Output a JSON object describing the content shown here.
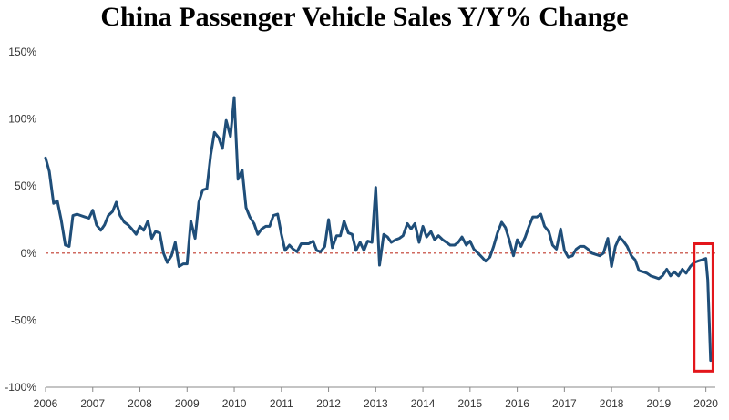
{
  "chart_data": {
    "type": "line",
    "title": "China Passenger Vehicle Sales Y/Y% Change",
    "xlabel": "",
    "ylabel": "",
    "xlim": [
      2006,
      2020.2
    ],
    "ylim": [
      -100,
      150
    ],
    "x_ticks": [
      2006,
      2007,
      2008,
      2009,
      2010,
      2011,
      2012,
      2013,
      2014,
      2015,
      2016,
      2017,
      2018,
      2019,
      2020
    ],
    "x_tick_labels": [
      "2006",
      "2007",
      "2008",
      "2009",
      "2010",
      "2011",
      "2012",
      "2013",
      "2014",
      "2015",
      "2016",
      "2017",
      "2018",
      "2019",
      "2020"
    ],
    "y_ticks": [
      -100,
      -50,
      0,
      50,
      100,
      150
    ],
    "y_tick_labels": [
      "-100%",
      "-50%",
      "0%",
      "50%",
      "100%",
      "150%"
    ],
    "grid": false,
    "reference_line": {
      "y": 0,
      "style": "dashed",
      "color": "#c0392b"
    },
    "highlight_box": {
      "x": [
        2019.75,
        2020.15
      ],
      "y": [
        -88,
        7
      ],
      "color": "#e3161b"
    },
    "line_color": "#1f4e79",
    "series": [
      {
        "values": [
          [
            2006.0,
            71
          ],
          [
            2006.08,
            61
          ],
          [
            2006.17,
            37
          ],
          [
            2006.25,
            39
          ],
          [
            2006.33,
            25
          ],
          [
            2006.42,
            6
          ],
          [
            2006.5,
            5
          ],
          [
            2006.58,
            28
          ],
          [
            2006.67,
            29
          ],
          [
            2006.75,
            28
          ],
          [
            2006.83,
            27
          ],
          [
            2006.92,
            26
          ],
          [
            2007.0,
            32
          ],
          [
            2007.08,
            21
          ],
          [
            2007.17,
            17
          ],
          [
            2007.25,
            21
          ],
          [
            2007.33,
            28
          ],
          [
            2007.42,
            31
          ],
          [
            2007.5,
            38
          ],
          [
            2007.58,
            28
          ],
          [
            2007.67,
            23
          ],
          [
            2007.75,
            21
          ],
          [
            2007.83,
            18
          ],
          [
            2007.92,
            14
          ],
          [
            2008.0,
            20
          ],
          [
            2008.08,
            17
          ],
          [
            2008.17,
            24
          ],
          [
            2008.25,
            11
          ],
          [
            2008.33,
            16
          ],
          [
            2008.42,
            15
          ],
          [
            2008.5,
            0
          ],
          [
            2008.58,
            -7
          ],
          [
            2008.67,
            -2
          ],
          [
            2008.75,
            8
          ],
          [
            2008.83,
            -10
          ],
          [
            2008.92,
            -8
          ],
          [
            2009.0,
            -8
          ],
          [
            2009.08,
            24
          ],
          [
            2009.17,
            11
          ],
          [
            2009.25,
            38
          ],
          [
            2009.33,
            47
          ],
          [
            2009.42,
            48
          ],
          [
            2009.5,
            73
          ],
          [
            2009.58,
            90
          ],
          [
            2009.67,
            86
          ],
          [
            2009.75,
            78
          ],
          [
            2009.83,
            99
          ],
          [
            2009.92,
            87
          ],
          [
            2010.0,
            116
          ],
          [
            2010.08,
            55
          ],
          [
            2010.17,
            62
          ],
          [
            2010.25,
            34
          ],
          [
            2010.33,
            27
          ],
          [
            2010.42,
            22
          ],
          [
            2010.5,
            14
          ],
          [
            2010.58,
            18
          ],
          [
            2010.67,
            20
          ],
          [
            2010.75,
            20
          ],
          [
            2010.83,
            28
          ],
          [
            2010.92,
            29
          ],
          [
            2011.0,
            14
          ],
          [
            2011.08,
            2
          ],
          [
            2011.17,
            6
          ],
          [
            2011.25,
            3
          ],
          [
            2011.33,
            1
          ],
          [
            2011.42,
            7
          ],
          [
            2011.5,
            7
          ],
          [
            2011.58,
            7
          ],
          [
            2011.67,
            9
          ],
          [
            2011.75,
            2
          ],
          [
            2011.83,
            1
          ],
          [
            2011.92,
            5
          ],
          [
            2012.0,
            25
          ],
          [
            2012.08,
            4
          ],
          [
            2012.17,
            13
          ],
          [
            2012.25,
            13
          ],
          [
            2012.33,
            24
          ],
          [
            2012.42,
            15
          ],
          [
            2012.5,
            14
          ],
          [
            2012.58,
            2
          ],
          [
            2012.67,
            8
          ],
          [
            2012.75,
            2
          ],
          [
            2012.83,
            9
          ],
          [
            2012.92,
            8
          ],
          [
            2013.0,
            49
          ],
          [
            2013.08,
            -9
          ],
          [
            2013.17,
            14
          ],
          [
            2013.25,
            12
          ],
          [
            2013.33,
            8
          ],
          [
            2013.42,
            10
          ],
          [
            2013.5,
            11
          ],
          [
            2013.58,
            13
          ],
          [
            2013.67,
            22
          ],
          [
            2013.75,
            18
          ],
          [
            2013.83,
            22
          ],
          [
            2013.92,
            8
          ],
          [
            2014.0,
            20
          ],
          [
            2014.08,
            12
          ],
          [
            2014.17,
            16
          ],
          [
            2014.25,
            10
          ],
          [
            2014.33,
            13
          ],
          [
            2014.42,
            10
          ],
          [
            2014.5,
            8
          ],
          [
            2014.58,
            6
          ],
          [
            2014.67,
            6
          ],
          [
            2014.75,
            8
          ],
          [
            2014.83,
            12
          ],
          [
            2014.92,
            6
          ],
          [
            2015.0,
            9
          ],
          [
            2015.08,
            3
          ],
          [
            2015.17,
            0
          ],
          [
            2015.25,
            -3
          ],
          [
            2015.33,
            -6
          ],
          [
            2015.42,
            -3
          ],
          [
            2015.5,
            5
          ],
          [
            2015.58,
            15
          ],
          [
            2015.67,
            23
          ],
          [
            2015.75,
            19
          ],
          [
            2015.83,
            10
          ],
          [
            2015.92,
            -2
          ],
          [
            2016.0,
            10
          ],
          [
            2016.08,
            5
          ],
          [
            2016.17,
            12
          ],
          [
            2016.25,
            20
          ],
          [
            2016.33,
            27
          ],
          [
            2016.42,
            27
          ],
          [
            2016.5,
            29
          ],
          [
            2016.58,
            20
          ],
          [
            2016.67,
            16
          ],
          [
            2016.75,
            6
          ],
          [
            2016.83,
            3
          ],
          [
            2016.92,
            18
          ],
          [
            2017.0,
            2
          ],
          [
            2017.08,
            -3
          ],
          [
            2017.17,
            -2
          ],
          [
            2017.25,
            3
          ],
          [
            2017.33,
            5
          ],
          [
            2017.42,
            5
          ],
          [
            2017.5,
            3
          ],
          [
            2017.58,
            0
          ],
          [
            2017.67,
            -1
          ],
          [
            2017.75,
            -2
          ],
          [
            2017.83,
            0
          ],
          [
            2017.92,
            11
          ],
          [
            2018.0,
            -10
          ],
          [
            2018.08,
            5
          ],
          [
            2018.17,
            12
          ],
          [
            2018.25,
            9
          ],
          [
            2018.33,
            5
          ],
          [
            2018.42,
            -2
          ],
          [
            2018.5,
            -5
          ],
          [
            2018.58,
            -13
          ],
          [
            2018.67,
            -14
          ],
          [
            2018.75,
            -15
          ],
          [
            2018.83,
            -17
          ],
          [
            2018.92,
            -18
          ],
          [
            2019.0,
            -19
          ],
          [
            2019.08,
            -17
          ],
          [
            2019.17,
            -12
          ],
          [
            2019.25,
            -17
          ],
          [
            2019.33,
            -14
          ],
          [
            2019.42,
            -17
          ],
          [
            2019.5,
            -12
          ],
          [
            2019.58,
            -15
          ],
          [
            2019.67,
            -10
          ],
          [
            2019.75,
            -7
          ],
          [
            2019.83,
            -6
          ],
          [
            2019.92,
            -5
          ],
          [
            2020.0,
            -4
          ],
          [
            2020.04,
            -20
          ],
          [
            2020.1,
            -80
          ]
        ]
      }
    ]
  }
}
